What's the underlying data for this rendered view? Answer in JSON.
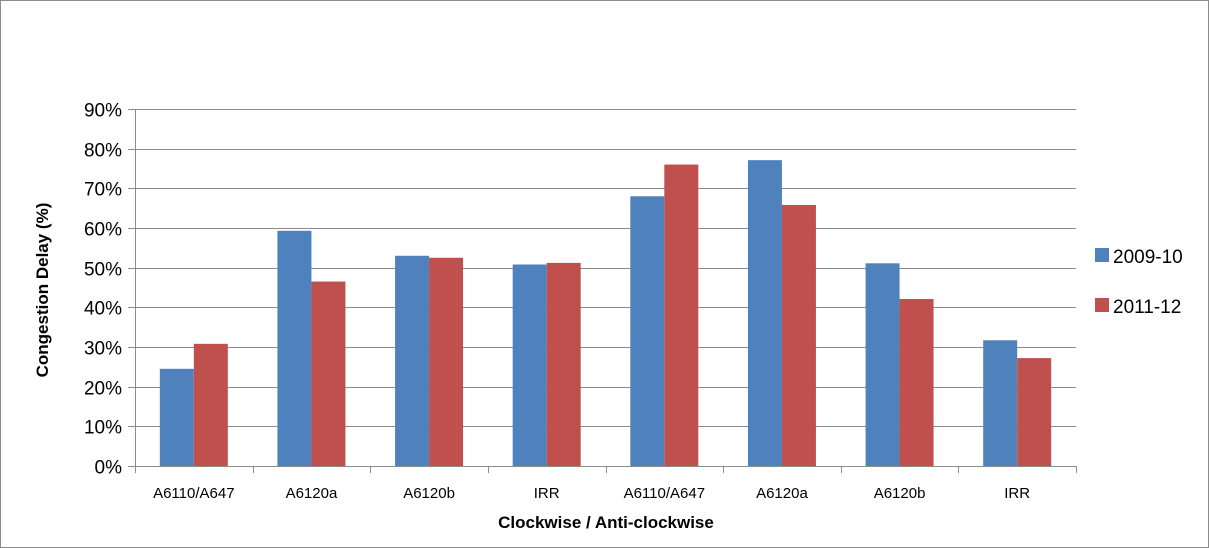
{
  "chart_data": {
    "type": "bar",
    "title": "",
    "xlabel": "Clockwise / Anti-clockwise",
    "ylabel": "Congestion Delay (%)",
    "categories": [
      "A6110/A647",
      "A6120a",
      "A6120b",
      "IRR",
      "A6110/A647",
      "A6120a",
      "A6120b",
      "IRR"
    ],
    "series": [
      {
        "name": "2009-10",
        "color": "#4f81bd",
        "values": [
          0.245,
          0.593,
          0.53,
          0.508,
          0.68,
          0.771,
          0.511,
          0.317
        ]
      },
      {
        "name": "2011-12",
        "color": "#c0504d",
        "values": [
          0.308,
          0.465,
          0.525,
          0.512,
          0.76,
          0.658,
          0.421,
          0.272
        ]
      }
    ],
    "ylim": [
      0,
      0.9
    ],
    "yticks": [
      "0%",
      "10%",
      "20%",
      "30%",
      "40%",
      "50%",
      "60%",
      "70%",
      "80%",
      "90%"
    ],
    "grid": true,
    "legend_position": "right"
  }
}
